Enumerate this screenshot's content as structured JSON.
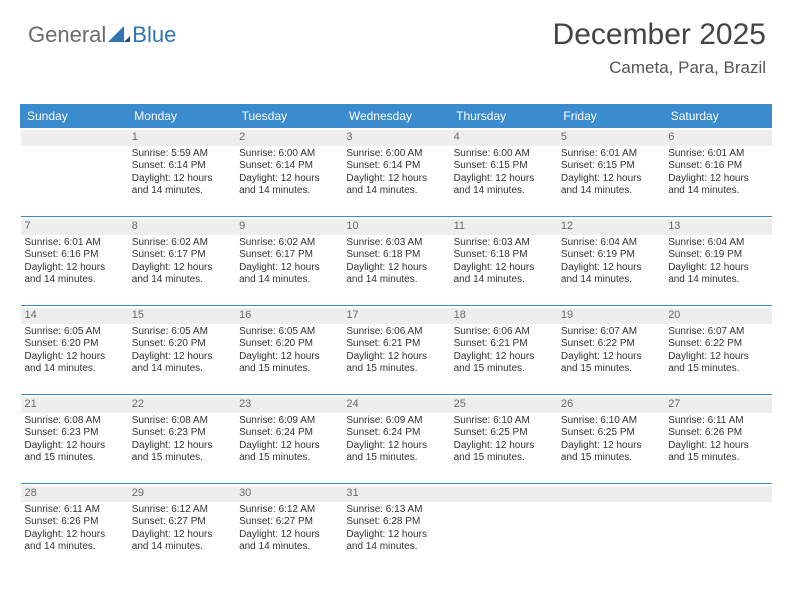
{
  "logo": {
    "text_grey": "General",
    "text_blue": "Blue"
  },
  "header": {
    "title": "December 2025",
    "location": "Cameta, Para, Brazil"
  },
  "styles": {
    "header_bg": "#3a8ccf",
    "header_fg": "#ffffff",
    "daynum_bg": "#eeeeee",
    "daynum_fg": "#6a6a6a",
    "text_color": "#333333",
    "title_color": "#444444",
    "subtitle_color": "#555555",
    "title_fontsize": 30,
    "subtitle_fontsize": 17,
    "th_fontsize": 12,
    "cell_fontsize": 10,
    "page_bg": "#ffffff",
    "border_color": "#3a8ccf"
  },
  "weekdays": [
    "Sunday",
    "Monday",
    "Tuesday",
    "Wednesday",
    "Thursday",
    "Friday",
    "Saturday"
  ],
  "weeks": [
    [
      {
        "day": "",
        "lines": [
          "",
          "",
          "",
          ""
        ]
      },
      {
        "day": "1",
        "lines": [
          "Sunrise: 5:59 AM",
          "Sunset: 6:14 PM",
          "Daylight: 12 hours",
          "and 14 minutes."
        ]
      },
      {
        "day": "2",
        "lines": [
          "Sunrise: 6:00 AM",
          "Sunset: 6:14 PM",
          "Daylight: 12 hours",
          "and 14 minutes."
        ]
      },
      {
        "day": "3",
        "lines": [
          "Sunrise: 6:00 AM",
          "Sunset: 6:14 PM",
          "Daylight: 12 hours",
          "and 14 minutes."
        ]
      },
      {
        "day": "4",
        "lines": [
          "Sunrise: 6:00 AM",
          "Sunset: 6:15 PM",
          "Daylight: 12 hours",
          "and 14 minutes."
        ]
      },
      {
        "day": "5",
        "lines": [
          "Sunrise: 6:01 AM",
          "Sunset: 6:15 PM",
          "Daylight: 12 hours",
          "and 14 minutes."
        ]
      },
      {
        "day": "6",
        "lines": [
          "Sunrise: 6:01 AM",
          "Sunset: 6:16 PM",
          "Daylight: 12 hours",
          "and 14 minutes."
        ]
      }
    ],
    [
      {
        "day": "7",
        "lines": [
          "Sunrise: 6:01 AM",
          "Sunset: 6:16 PM",
          "Daylight: 12 hours",
          "and 14 minutes."
        ]
      },
      {
        "day": "8",
        "lines": [
          "Sunrise: 6:02 AM",
          "Sunset: 6:17 PM",
          "Daylight: 12 hours",
          "and 14 minutes."
        ]
      },
      {
        "day": "9",
        "lines": [
          "Sunrise: 6:02 AM",
          "Sunset: 6:17 PM",
          "Daylight: 12 hours",
          "and 14 minutes."
        ]
      },
      {
        "day": "10",
        "lines": [
          "Sunrise: 6:03 AM",
          "Sunset: 6:18 PM",
          "Daylight: 12 hours",
          "and 14 minutes."
        ]
      },
      {
        "day": "11",
        "lines": [
          "Sunrise: 6:03 AM",
          "Sunset: 6:18 PM",
          "Daylight: 12 hours",
          "and 14 minutes."
        ]
      },
      {
        "day": "12",
        "lines": [
          "Sunrise: 6:04 AM",
          "Sunset: 6:19 PM",
          "Daylight: 12 hours",
          "and 14 minutes."
        ]
      },
      {
        "day": "13",
        "lines": [
          "Sunrise: 6:04 AM",
          "Sunset: 6:19 PM",
          "Daylight: 12 hours",
          "and 14 minutes."
        ]
      }
    ],
    [
      {
        "day": "14",
        "lines": [
          "Sunrise: 6:05 AM",
          "Sunset: 6:20 PM",
          "Daylight: 12 hours",
          "and 14 minutes."
        ]
      },
      {
        "day": "15",
        "lines": [
          "Sunrise: 6:05 AM",
          "Sunset: 6:20 PM",
          "Daylight: 12 hours",
          "and 14 minutes."
        ]
      },
      {
        "day": "16",
        "lines": [
          "Sunrise: 6:05 AM",
          "Sunset: 6:20 PM",
          "Daylight: 12 hours",
          "and 15 minutes."
        ]
      },
      {
        "day": "17",
        "lines": [
          "Sunrise: 6:06 AM",
          "Sunset: 6:21 PM",
          "Daylight: 12 hours",
          "and 15 minutes."
        ]
      },
      {
        "day": "18",
        "lines": [
          "Sunrise: 6:06 AM",
          "Sunset: 6:21 PM",
          "Daylight: 12 hours",
          "and 15 minutes."
        ]
      },
      {
        "day": "19",
        "lines": [
          "Sunrise: 6:07 AM",
          "Sunset: 6:22 PM",
          "Daylight: 12 hours",
          "and 15 minutes."
        ]
      },
      {
        "day": "20",
        "lines": [
          "Sunrise: 6:07 AM",
          "Sunset: 6:22 PM",
          "Daylight: 12 hours",
          "and 15 minutes."
        ]
      }
    ],
    [
      {
        "day": "21",
        "lines": [
          "Sunrise: 6:08 AM",
          "Sunset: 6:23 PM",
          "Daylight: 12 hours",
          "and 15 minutes."
        ]
      },
      {
        "day": "22",
        "lines": [
          "Sunrise: 6:08 AM",
          "Sunset: 6:23 PM",
          "Daylight: 12 hours",
          "and 15 minutes."
        ]
      },
      {
        "day": "23",
        "lines": [
          "Sunrise: 6:09 AM",
          "Sunset: 6:24 PM",
          "Daylight: 12 hours",
          "and 15 minutes."
        ]
      },
      {
        "day": "24",
        "lines": [
          "Sunrise: 6:09 AM",
          "Sunset: 6:24 PM",
          "Daylight: 12 hours",
          "and 15 minutes."
        ]
      },
      {
        "day": "25",
        "lines": [
          "Sunrise: 6:10 AM",
          "Sunset: 6:25 PM",
          "Daylight: 12 hours",
          "and 15 minutes."
        ]
      },
      {
        "day": "26",
        "lines": [
          "Sunrise: 6:10 AM",
          "Sunset: 6:25 PM",
          "Daylight: 12 hours",
          "and 15 minutes."
        ]
      },
      {
        "day": "27",
        "lines": [
          "Sunrise: 6:11 AM",
          "Sunset: 6:26 PM",
          "Daylight: 12 hours",
          "and 15 minutes."
        ]
      }
    ],
    [
      {
        "day": "28",
        "lines": [
          "Sunrise: 6:11 AM",
          "Sunset: 6:26 PM",
          "Daylight: 12 hours",
          "and 14 minutes."
        ]
      },
      {
        "day": "29",
        "lines": [
          "Sunrise: 6:12 AM",
          "Sunset: 6:27 PM",
          "Daylight: 12 hours",
          "and 14 minutes."
        ]
      },
      {
        "day": "30",
        "lines": [
          "Sunrise: 6:12 AM",
          "Sunset: 6:27 PM",
          "Daylight: 12 hours",
          "and 14 minutes."
        ]
      },
      {
        "day": "31",
        "lines": [
          "Sunrise: 6:13 AM",
          "Sunset: 6:28 PM",
          "Daylight: 12 hours",
          "and 14 minutes."
        ]
      },
      {
        "day": "",
        "lines": [
          "",
          "",
          "",
          ""
        ]
      },
      {
        "day": "",
        "lines": [
          "",
          "",
          "",
          ""
        ]
      },
      {
        "day": "",
        "lines": [
          "",
          "",
          "",
          ""
        ]
      }
    ]
  ]
}
